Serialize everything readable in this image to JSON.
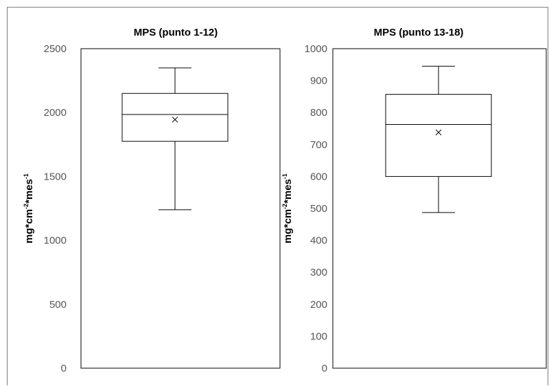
{
  "chart_data": [
    {
      "type": "box",
      "title": "MPS (punto 1-12)",
      "ylabel": {
        "base": "mg*cm",
        "exp1": "-2",
        "mid": "*mes",
        "exp2": "-1"
      },
      "ylim": [
        0,
        2500
      ],
      "yticks": [
        0,
        500,
        1000,
        1500,
        2000,
        2500
      ],
      "ytick_labels": [
        "0",
        "500",
        "1000",
        "1500",
        "2000",
        "2500"
      ],
      "box": {
        "whisker_low": 1240,
        "q1": 1775,
        "median": 1985,
        "q3": 2150,
        "whisker_high": 2350,
        "mean": 1945
      },
      "grid": false,
      "legend": "none"
    },
    {
      "type": "box",
      "title": "MPS (punto 13-18)",
      "ylabel": {
        "base": "mg*cm",
        "exp1": "-2",
        "mid": "*mes",
        "exp2": "-1"
      },
      "ylim": [
        0,
        1000
      ],
      "yticks": [
        0,
        100,
        200,
        300,
        400,
        500,
        600,
        700,
        800,
        900,
        1000
      ],
      "ytick_labels": [
        "0",
        "100",
        "200",
        "300",
        "400",
        "500",
        "600",
        "700",
        "800",
        "900",
        "1000"
      ],
      "box": {
        "whisker_low": 487,
        "q1": 600,
        "median": 763,
        "q3": 857,
        "whisker_high": 945,
        "mean": 738
      },
      "grid": false,
      "legend": "none"
    }
  ]
}
